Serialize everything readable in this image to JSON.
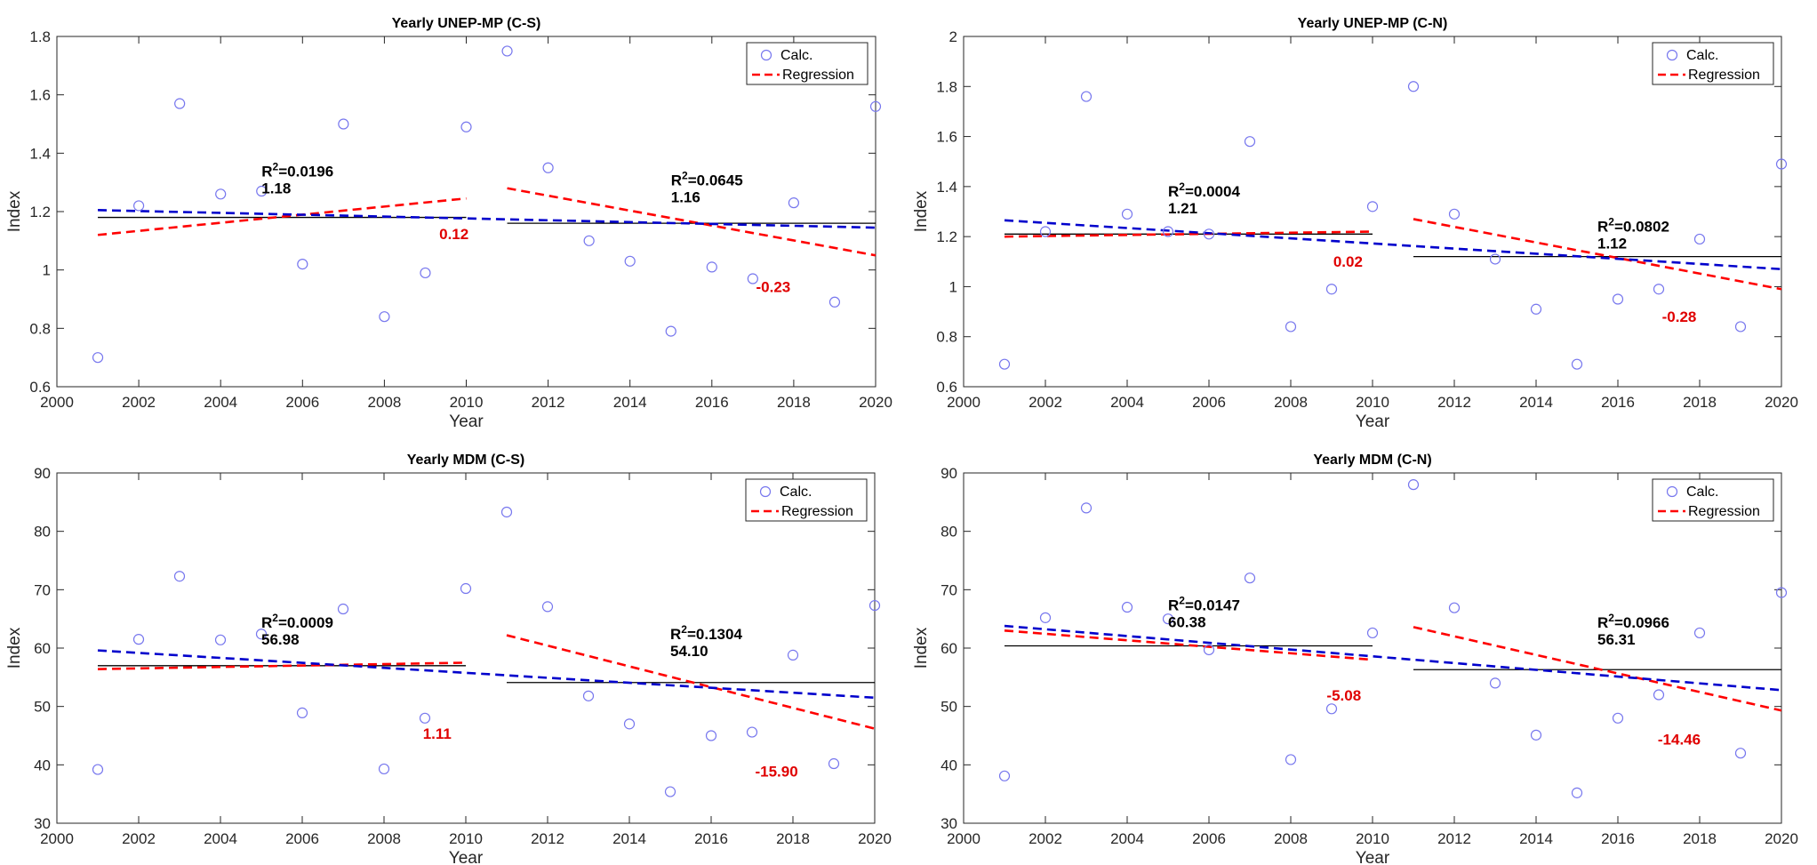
{
  "chart_data": [
    {
      "type": "scatter",
      "title": "Yearly UNEP-MP (C-S)",
      "xlabel": "Year",
      "ylabel": "Index",
      "xlim": [
        2000,
        2020
      ],
      "ylim": [
        0.6,
        1.8
      ],
      "xticks": [
        2000,
        2002,
        2004,
        2006,
        2008,
        2010,
        2012,
        2014,
        2016,
        2018,
        2020
      ],
      "yticks": [
        0.6,
        0.8,
        1,
        1.2,
        1.4,
        1.6,
        1.8
      ],
      "ytick_labels": [
        "0.6",
        "0.8",
        "1",
        "1.2",
        "1.4",
        "1.6",
        "1.8"
      ],
      "legend": [
        "Calc.",
        "Regression"
      ],
      "legend_position": "top-right",
      "series": [
        {
          "name": "Calc.",
          "x": [
            2001,
            2002,
            2003,
            2004,
            2005,
            2006,
            2007,
            2008,
            2009,
            2010,
            2011,
            2012,
            2013,
            2014,
            2015,
            2016,
            2017,
            2018,
            2019,
            2020
          ],
          "y": [
            0.7,
            1.22,
            1.57,
            1.26,
            1.27,
            1.02,
            1.5,
            0.84,
            0.99,
            1.49,
            1.75,
            1.35,
            1.1,
            1.03,
            0.79,
            1.01,
            0.97,
            1.23,
            0.89,
            1.56
          ]
        }
      ],
      "lines": [
        {
          "role": "mean",
          "color": "#000000",
          "dash": "solid",
          "x": [
            2001,
            2010
          ],
          "y": [
            1.18,
            1.18
          ]
        },
        {
          "role": "mean",
          "color": "#000000",
          "dash": "solid",
          "x": [
            2011,
            2020
          ],
          "y": [
            1.16,
            1.16
          ]
        },
        {
          "role": "regression",
          "color": "#ff0000",
          "dash": "dashed",
          "x": [
            2001,
            2010
          ],
          "y": [
            1.12,
            1.245
          ]
        },
        {
          "role": "regression",
          "color": "#ff0000",
          "dash": "dashed",
          "x": [
            2011,
            2020
          ],
          "y": [
            1.28,
            1.05
          ]
        },
        {
          "role": "overall",
          "color": "#0000cc",
          "dash": "dashed",
          "x": [
            2001,
            2020
          ],
          "y": [
            1.205,
            1.145
          ]
        }
      ],
      "annotations": [
        {
          "r2": "0.0196",
          "mean": "1.18",
          "x": 2005,
          "y": 1.32
        },
        {
          "r2": "0.0645",
          "mean": "1.16",
          "x": 2015,
          "y": 1.29
        }
      ],
      "slope_labels": [
        {
          "text": "0.12",
          "x": 2009.7,
          "y": 1.105
        },
        {
          "text": "-0.23",
          "x": 2017.5,
          "y": 0.925
        }
      ]
    },
    {
      "type": "scatter",
      "title": "Yearly UNEP-MP (C-N)",
      "xlabel": "Year",
      "ylabel": "Index",
      "xlim": [
        2000,
        2020
      ],
      "ylim": [
        0.6,
        2
      ],
      "xticks": [
        2000,
        2002,
        2004,
        2006,
        2008,
        2010,
        2012,
        2014,
        2016,
        2018,
        2020
      ],
      "yticks": [
        0.6,
        0.8,
        1,
        1.2,
        1.4,
        1.6,
        1.8,
        2
      ],
      "ytick_labels": [
        "0.6",
        "0.8",
        "1",
        "1.2",
        "1.4",
        "1.6",
        "1.8",
        "2"
      ],
      "legend": [
        "Calc.",
        "Regression"
      ],
      "legend_position": "top-right",
      "series": [
        {
          "name": "Calc.",
          "x": [
            2001,
            2002,
            2003,
            2004,
            2005,
            2006,
            2007,
            2008,
            2009,
            2010,
            2011,
            2012,
            2013,
            2014,
            2015,
            2016,
            2017,
            2018,
            2019,
            2020
          ],
          "y": [
            0.69,
            1.22,
            1.76,
            1.29,
            1.22,
            1.21,
            1.58,
            0.84,
            0.99,
            1.32,
            1.8,
            1.29,
            1.11,
            0.91,
            0.69,
            0.95,
            0.99,
            1.19,
            0.84,
            1.49
          ]
        }
      ],
      "lines": [
        {
          "role": "mean",
          "color": "#000000",
          "dash": "solid",
          "x": [
            2001,
            2010
          ],
          "y": [
            1.21,
            1.21
          ]
        },
        {
          "role": "mean",
          "color": "#000000",
          "dash": "solid",
          "x": [
            2011,
            2020
          ],
          "y": [
            1.12,
            1.12
          ]
        },
        {
          "role": "regression",
          "color": "#ff0000",
          "dash": "dashed",
          "x": [
            2001,
            2010
          ],
          "y": [
            1.2,
            1.22
          ]
        },
        {
          "role": "regression",
          "color": "#ff0000",
          "dash": "dashed",
          "x": [
            2011,
            2020
          ],
          "y": [
            1.27,
            0.99
          ]
        },
        {
          "role": "overall",
          "color": "#0000cc",
          "dash": "dashed",
          "x": [
            2001,
            2020
          ],
          "y": [
            1.265,
            1.07
          ]
        }
      ],
      "annotations": [
        {
          "r2": "0.0004",
          "mean": "1.21",
          "x": 2005,
          "y": 1.36
        },
        {
          "r2": "0.0802",
          "mean": "1.12",
          "x": 2015.5,
          "y": 1.22
        }
      ],
      "slope_labels": [
        {
          "text": "0.02",
          "x": 2009.4,
          "y": 1.08
        },
        {
          "text": "-0.28",
          "x": 2017.5,
          "y": 0.86
        }
      ]
    },
    {
      "type": "scatter",
      "title": "Yearly MDM (C-S)",
      "xlabel": "Year",
      "ylabel": "Index",
      "xlim": [
        2000,
        2020
      ],
      "ylim": [
        30,
        90
      ],
      "xticks": [
        2000,
        2002,
        2004,
        2006,
        2008,
        2010,
        2012,
        2014,
        2016,
        2018,
        2020
      ],
      "yticks": [
        30,
        40,
        50,
        60,
        70,
        80,
        90
      ],
      "ytick_labels": [
        "30",
        "40",
        "50",
        "60",
        "70",
        "80",
        "90"
      ],
      "legend": [
        "Calc.",
        "Regression"
      ],
      "legend_position": "top-right",
      "series": [
        {
          "name": "Calc.",
          "x": [
            2001,
            2002,
            2003,
            2004,
            2005,
            2006,
            2007,
            2008,
            2009,
            2010,
            2011,
            2012,
            2013,
            2014,
            2015,
            2016,
            2017,
            2018,
            2019,
            2020
          ],
          "y": [
            39.2,
            61.5,
            72.3,
            61.4,
            62.4,
            48.9,
            66.7,
            39.3,
            48.0,
            70.2,
            83.3,
            67.1,
            51.8,
            47.0,
            35.4,
            45.0,
            45.6,
            58.8,
            40.2,
            67.3
          ]
        }
      ],
      "lines": [
        {
          "role": "mean",
          "color": "#000000",
          "dash": "solid",
          "x": [
            2001,
            2010
          ],
          "y": [
            56.98,
            56.98
          ]
        },
        {
          "role": "mean",
          "color": "#000000",
          "dash": "solid",
          "x": [
            2011,
            2020
          ],
          "y": [
            54.1,
            54.1
          ]
        },
        {
          "role": "regression",
          "color": "#ff0000",
          "dash": "dashed",
          "x": [
            2001,
            2010
          ],
          "y": [
            56.4,
            57.5
          ]
        },
        {
          "role": "regression",
          "color": "#ff0000",
          "dash": "dashed",
          "x": [
            2011,
            2020
          ],
          "y": [
            62.2,
            46.2
          ]
        },
        {
          "role": "overall",
          "color": "#0000cc",
          "dash": "dashed",
          "x": [
            2001,
            2020
          ],
          "y": [
            59.6,
            51.5
          ]
        }
      ],
      "annotations": [
        {
          "r2": "0.0009",
          "mean": "56.98",
          "x": 2005,
          "y": 63.5
        },
        {
          "r2": "0.1304",
          "mean": "54.10",
          "x": 2015,
          "y": 61.5
        }
      ],
      "slope_labels": [
        {
          "text": "1.11",
          "x": 2009.3,
          "y": 44.5
        },
        {
          "text": "-15.90",
          "x": 2017.6,
          "y": 38.0
        }
      ]
    },
    {
      "type": "scatter",
      "title": "Yearly MDM (C-N)",
      "xlabel": "Year",
      "ylabel": "Index",
      "xlim": [
        2000,
        2020
      ],
      "ylim": [
        30,
        90
      ],
      "xticks": [
        2000,
        2002,
        2004,
        2006,
        2008,
        2010,
        2012,
        2014,
        2016,
        2018,
        2020
      ],
      "yticks": [
        30,
        40,
        50,
        60,
        70,
        80,
        90
      ],
      "ytick_labels": [
        "30",
        "40",
        "50",
        "60",
        "70",
        "80",
        "90"
      ],
      "legend": [
        "Calc.",
        "Regression"
      ],
      "legend_position": "top-right",
      "series": [
        {
          "name": "Calc.",
          "x": [
            2001,
            2002,
            2003,
            2004,
            2005,
            2006,
            2007,
            2008,
            2009,
            2010,
            2011,
            2012,
            2013,
            2014,
            2015,
            2016,
            2017,
            2018,
            2019,
            2020
          ],
          "y": [
            38.1,
            65.2,
            84.0,
            67.0,
            65.0,
            59.7,
            72.0,
            40.9,
            49.6,
            62.6,
            88.0,
            66.9,
            54.0,
            45.1,
            35.2,
            48.0,
            52.0,
            62.6,
            42.0,
            69.5
          ]
        }
      ],
      "lines": [
        {
          "role": "mean",
          "color": "#000000",
          "dash": "solid",
          "x": [
            2001,
            2010
          ],
          "y": [
            60.38,
            60.38
          ]
        },
        {
          "role": "mean",
          "color": "#000000",
          "dash": "solid",
          "x": [
            2011,
            2020
          ],
          "y": [
            56.31,
            56.31
          ]
        },
        {
          "role": "regression",
          "color": "#ff0000",
          "dash": "dashed",
          "x": [
            2001,
            2010
          ],
          "y": [
            63.0,
            58.0
          ]
        },
        {
          "role": "regression",
          "color": "#ff0000",
          "dash": "dashed",
          "x": [
            2011,
            2020
          ],
          "y": [
            63.6,
            49.3
          ]
        },
        {
          "role": "overall",
          "color": "#0000cc",
          "dash": "dashed",
          "x": [
            2001,
            2020
          ],
          "y": [
            63.8,
            52.8
          ]
        }
      ],
      "annotations": [
        {
          "r2": "0.0147",
          "mean": "60.38",
          "x": 2005,
          "y": 66.5
        },
        {
          "r2": "0.0966",
          "mean": "56.31",
          "x": 2015.5,
          "y": 63.5
        }
      ],
      "slope_labels": [
        {
          "text": "-5.08",
          "x": 2009.3,
          "y": 51.0
        },
        {
          "text": "-14.46",
          "x": 2017.5,
          "y": 43.5
        }
      ]
    }
  ]
}
